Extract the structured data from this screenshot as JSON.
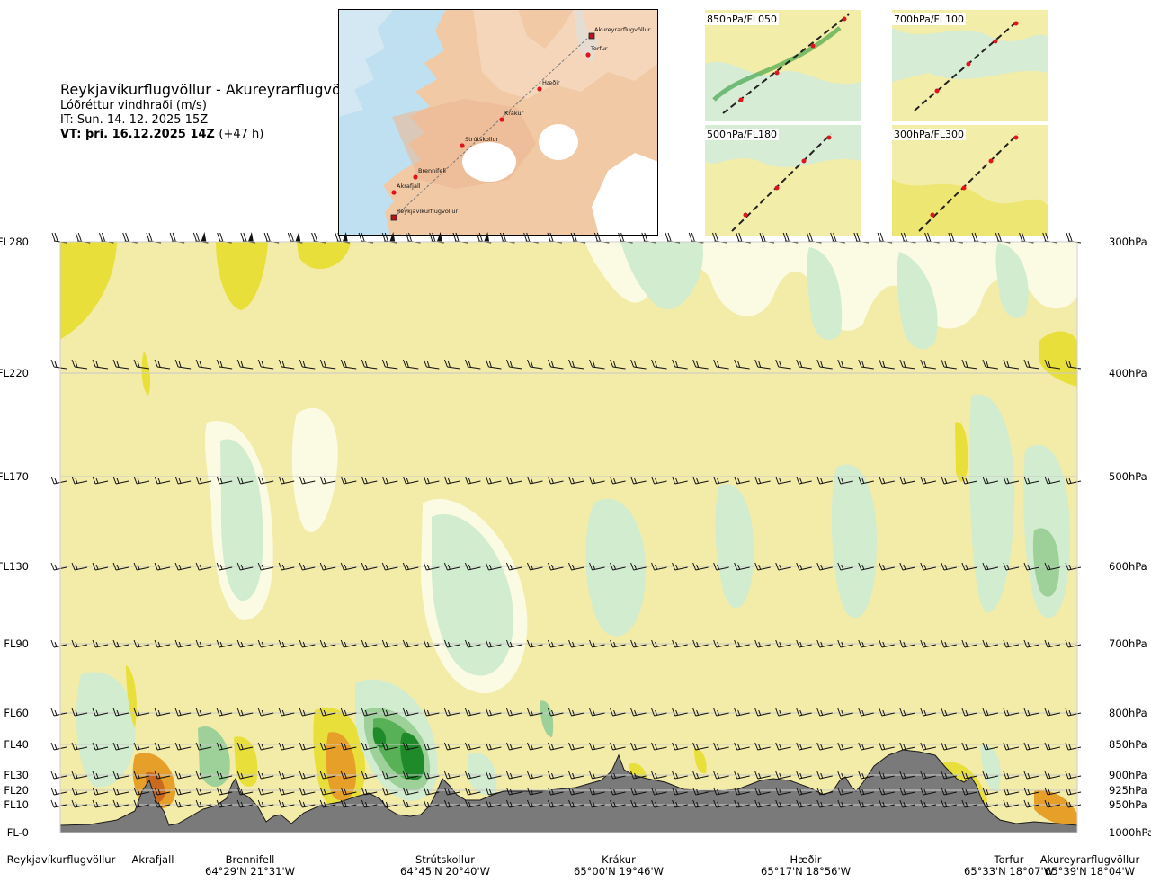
{
  "header": {
    "route": "Reykjavíkurflugvöllur - Akureyrarflugvöllur",
    "variable": "Lóðréttur vindhraði (m/s)",
    "issue_time": "IT: Sun. 14. 12. 2025 15Z",
    "valid_time": "VT: þri. 16.12.2025 14Z",
    "lead_time": "(+47 h)"
  },
  "map": {
    "waypoints": [
      {
        "name": "Akureyrarflugvöllur",
        "kind": "airport"
      },
      {
        "name": "Torfur",
        "kind": "point"
      },
      {
        "name": "Hæðir",
        "kind": "point"
      },
      {
        "name": "Krákur",
        "kind": "point"
      },
      {
        "name": "Strútskollur",
        "kind": "point"
      },
      {
        "name": "Brennifell",
        "kind": "point"
      },
      {
        "name": "Akrafjall",
        "kind": "point"
      },
      {
        "name": "Reykjavíkurflugvöllur",
        "kind": "airport"
      }
    ]
  },
  "insets": [
    {
      "label": "850hPa/FL050"
    },
    {
      "label": "700hPa/FL100"
    },
    {
      "label": "500hPa/FL180"
    },
    {
      "label": "300hPa/FL300"
    }
  ],
  "chart_data": {
    "type": "heatmap",
    "title": "Lóðréttur vindhraði (m/s)",
    "y_left_ticks": [
      "FL280",
      "FL220",
      "FL170",
      "FL130",
      "FL90",
      "FL60",
      "FL40",
      "FL30",
      "FL20",
      "FL10",
      "FL-0"
    ],
    "y_right_ticks": [
      "300hPa",
      "400hPa",
      "500hPa",
      "600hPa",
      "700hPa",
      "800hPa",
      "850hPa",
      "900hPa",
      "925hPa",
      "950hPa",
      "1000hPa"
    ],
    "pressure_levels_hpa": [
      300,
      400,
      500,
      600,
      700,
      800,
      850,
      900,
      925,
      950,
      1000
    ],
    "x_locations": [
      {
        "name": "Reykjavíkurflugvöllur",
        "coord": ""
      },
      {
        "name": "Akrafjall",
        "coord": ""
      },
      {
        "name": "Brennifell",
        "coord": "64°29'N 21°31'W"
      },
      {
        "name": "Strútskollur",
        "coord": "64°45'N 20°40'W"
      },
      {
        "name": "Krákur",
        "coord": "65°00'N 19°46'W"
      },
      {
        "name": "Hæðir",
        "coord": "65°17'N 18°56'W"
      },
      {
        "name": "Torfur",
        "coord": "65°33'N 18°07'W"
      },
      {
        "name": "Akureyrarflugvöllur",
        "coord": "65°39'N 18°04'W"
      }
    ],
    "colors": {
      "background": "#f3eba8",
      "light_green": "#d2ecd0",
      "mid_green": "#9ed19a",
      "green": "#58b057",
      "dark_green": "#1f8a2a",
      "pale": "#fbfbe3",
      "yellow": "#e8df3a",
      "orange": "#e6a02a",
      "dark_orange": "#c96a1e",
      "terrain": "#7a7a7a"
    }
  }
}
